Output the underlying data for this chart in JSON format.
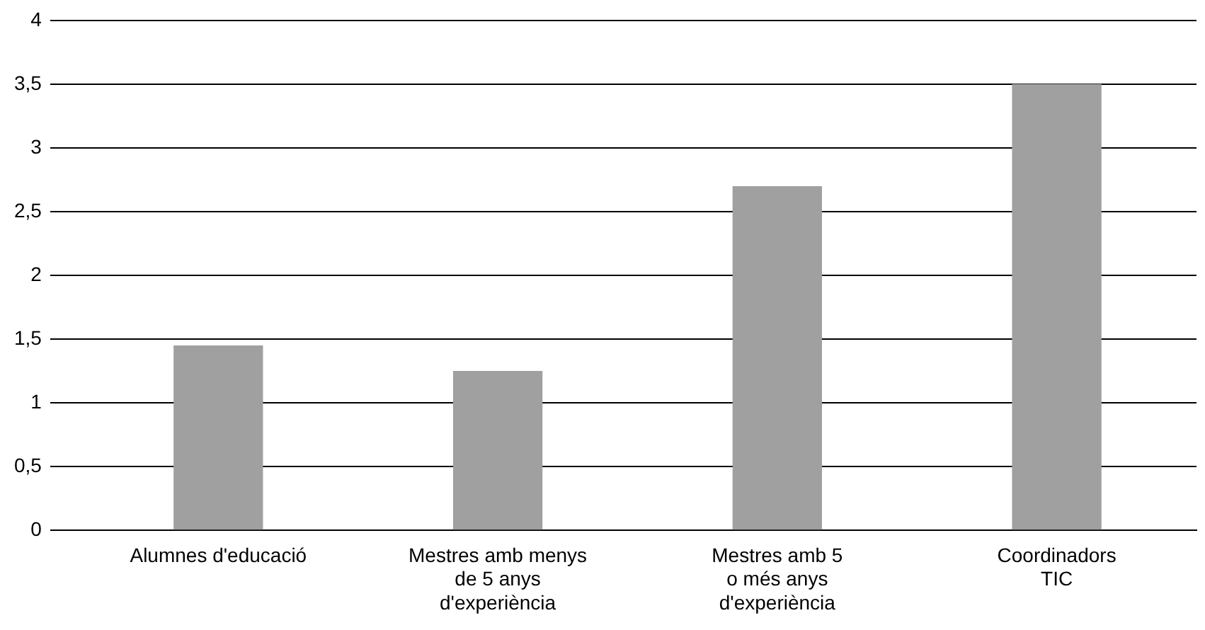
{
  "chart_data": {
    "type": "bar",
    "categories": [
      "Alumnes d'educació",
      "Mestres amb menys\nde 5 anys\nd'experiència",
      "Mestres amb 5\no més anys\nd'experiència",
      "Coordinadors\nTIC"
    ],
    "values": [
      1.45,
      1.25,
      2.7,
      3.5
    ],
    "color": "#a0a0a0",
    "ylim": [
      0,
      4
    ],
    "yticks": [
      0,
      {
        "value": 0.5,
        "label": "0,5"
      },
      1,
      {
        "value": 1.5,
        "label": "1,5"
      },
      2,
      {
        "value": 2.5,
        "label": "2,5"
      },
      3,
      {
        "value": 3.5,
        "label": "3,5"
      },
      4
    ],
    "grid": "y"
  }
}
